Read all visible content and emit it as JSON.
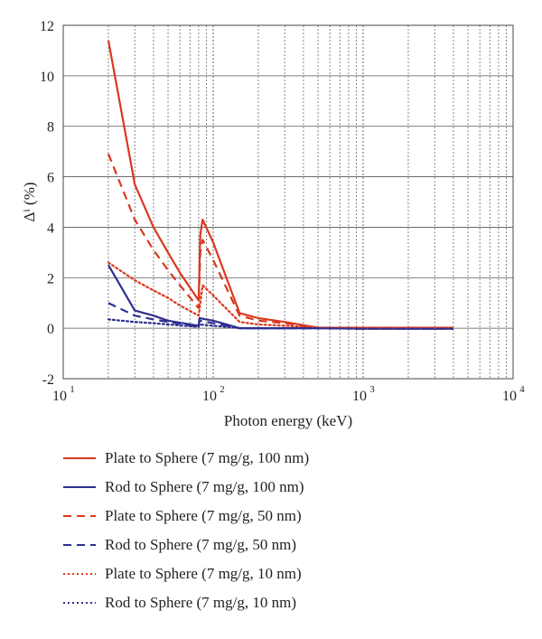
{
  "chart_data": {
    "type": "line",
    "ylabel": "Δⁱ (%)",
    "xlabel": "Photon energy (keV)",
    "x_scale": "log",
    "xlim": [
      10,
      10000
    ],
    "ylim": [
      -2,
      12
    ],
    "y_ticks": [
      "-2",
      "0",
      "2",
      "4",
      "6",
      "8",
      "10",
      "12"
    ],
    "x_ticks": [
      {
        "base": "10",
        "exp": "1"
      },
      {
        "base": "10",
        "exp": "2"
      },
      {
        "base": "10",
        "exp": "3"
      },
      {
        "base": "10",
        "exp": "4"
      }
    ],
    "grid": true,
    "legend_position": "below",
    "series": [
      {
        "name": "Plate to Sphere (7 mg/g, 100 nm)",
        "color": "#d9381e",
        "style": "solid",
        "x": [
          20,
          30,
          40,
          50,
          60,
          80,
          82,
          85,
          100,
          150,
          200,
          300,
          500,
          1000,
          2000,
          4000
        ],
        "y": [
          11.4,
          5.7,
          4.0,
          3.0,
          2.2,
          1.1,
          3.7,
          4.3,
          3.4,
          0.6,
          0.4,
          0.25,
          0.02,
          0.02,
          0.02,
          0.02
        ]
      },
      {
        "name": "Rod to Sphere (7 mg/g, 100 nm)",
        "color": "#2e2f8f",
        "style": "solid",
        "x": [
          20,
          30,
          40,
          50,
          80,
          81,
          100,
          150,
          200,
          500,
          1000,
          4000
        ],
        "y": [
          2.5,
          0.7,
          0.5,
          0.3,
          0.1,
          0.4,
          0.3,
          0.0,
          0.0,
          0.0,
          -0.02,
          -0.02
        ]
      },
      {
        "name": "Plate to Sphere (7 mg/g, 50 nm)",
        "color": "#d9381e",
        "style": "dashed",
        "x": [
          20,
          30,
          40,
          50,
          60,
          80,
          82,
          85,
          100,
          150,
          200,
          300,
          500,
          1000,
          4000
        ],
        "y": [
          6.9,
          4.3,
          3.1,
          2.3,
          1.7,
          0.8,
          3.0,
          3.5,
          2.7,
          0.5,
          0.3,
          0.2,
          0.02,
          0.02,
          0.02
        ]
      },
      {
        "name": "Rod to Sphere (7 mg/g, 50 nm)",
        "color": "#2e2f8f",
        "style": "dashed",
        "x": [
          20,
          30,
          40,
          50,
          80,
          81,
          100,
          150,
          500,
          1000,
          4000
        ],
        "y": [
          1.0,
          0.5,
          0.35,
          0.25,
          0.05,
          0.3,
          0.2,
          0.0,
          0.0,
          -0.02,
          -0.02
        ]
      },
      {
        "name": "Plate to Sphere (7 mg/g, 10 nm)",
        "color": "#d9381e",
        "style": "dotted",
        "x": [
          20,
          30,
          40,
          50,
          60,
          80,
          85,
          100,
          150,
          200,
          300,
          500,
          1000,
          4000
        ],
        "y": [
          2.6,
          1.9,
          1.5,
          1.2,
          0.9,
          0.5,
          1.7,
          1.3,
          0.25,
          0.15,
          0.1,
          0.02,
          0.02,
          0.02
        ]
      },
      {
        "name": "Rod to Sphere (7 mg/g, 10 nm)",
        "color": "#2e2f8f",
        "style": "dotted",
        "x": [
          20,
          30,
          40,
          50,
          80,
          81,
          100,
          150,
          500,
          1000,
          4000
        ],
        "y": [
          0.35,
          0.25,
          0.2,
          0.15,
          0.05,
          0.15,
          0.1,
          0.0,
          0.0,
          -0.02,
          -0.02
        ]
      }
    ]
  }
}
